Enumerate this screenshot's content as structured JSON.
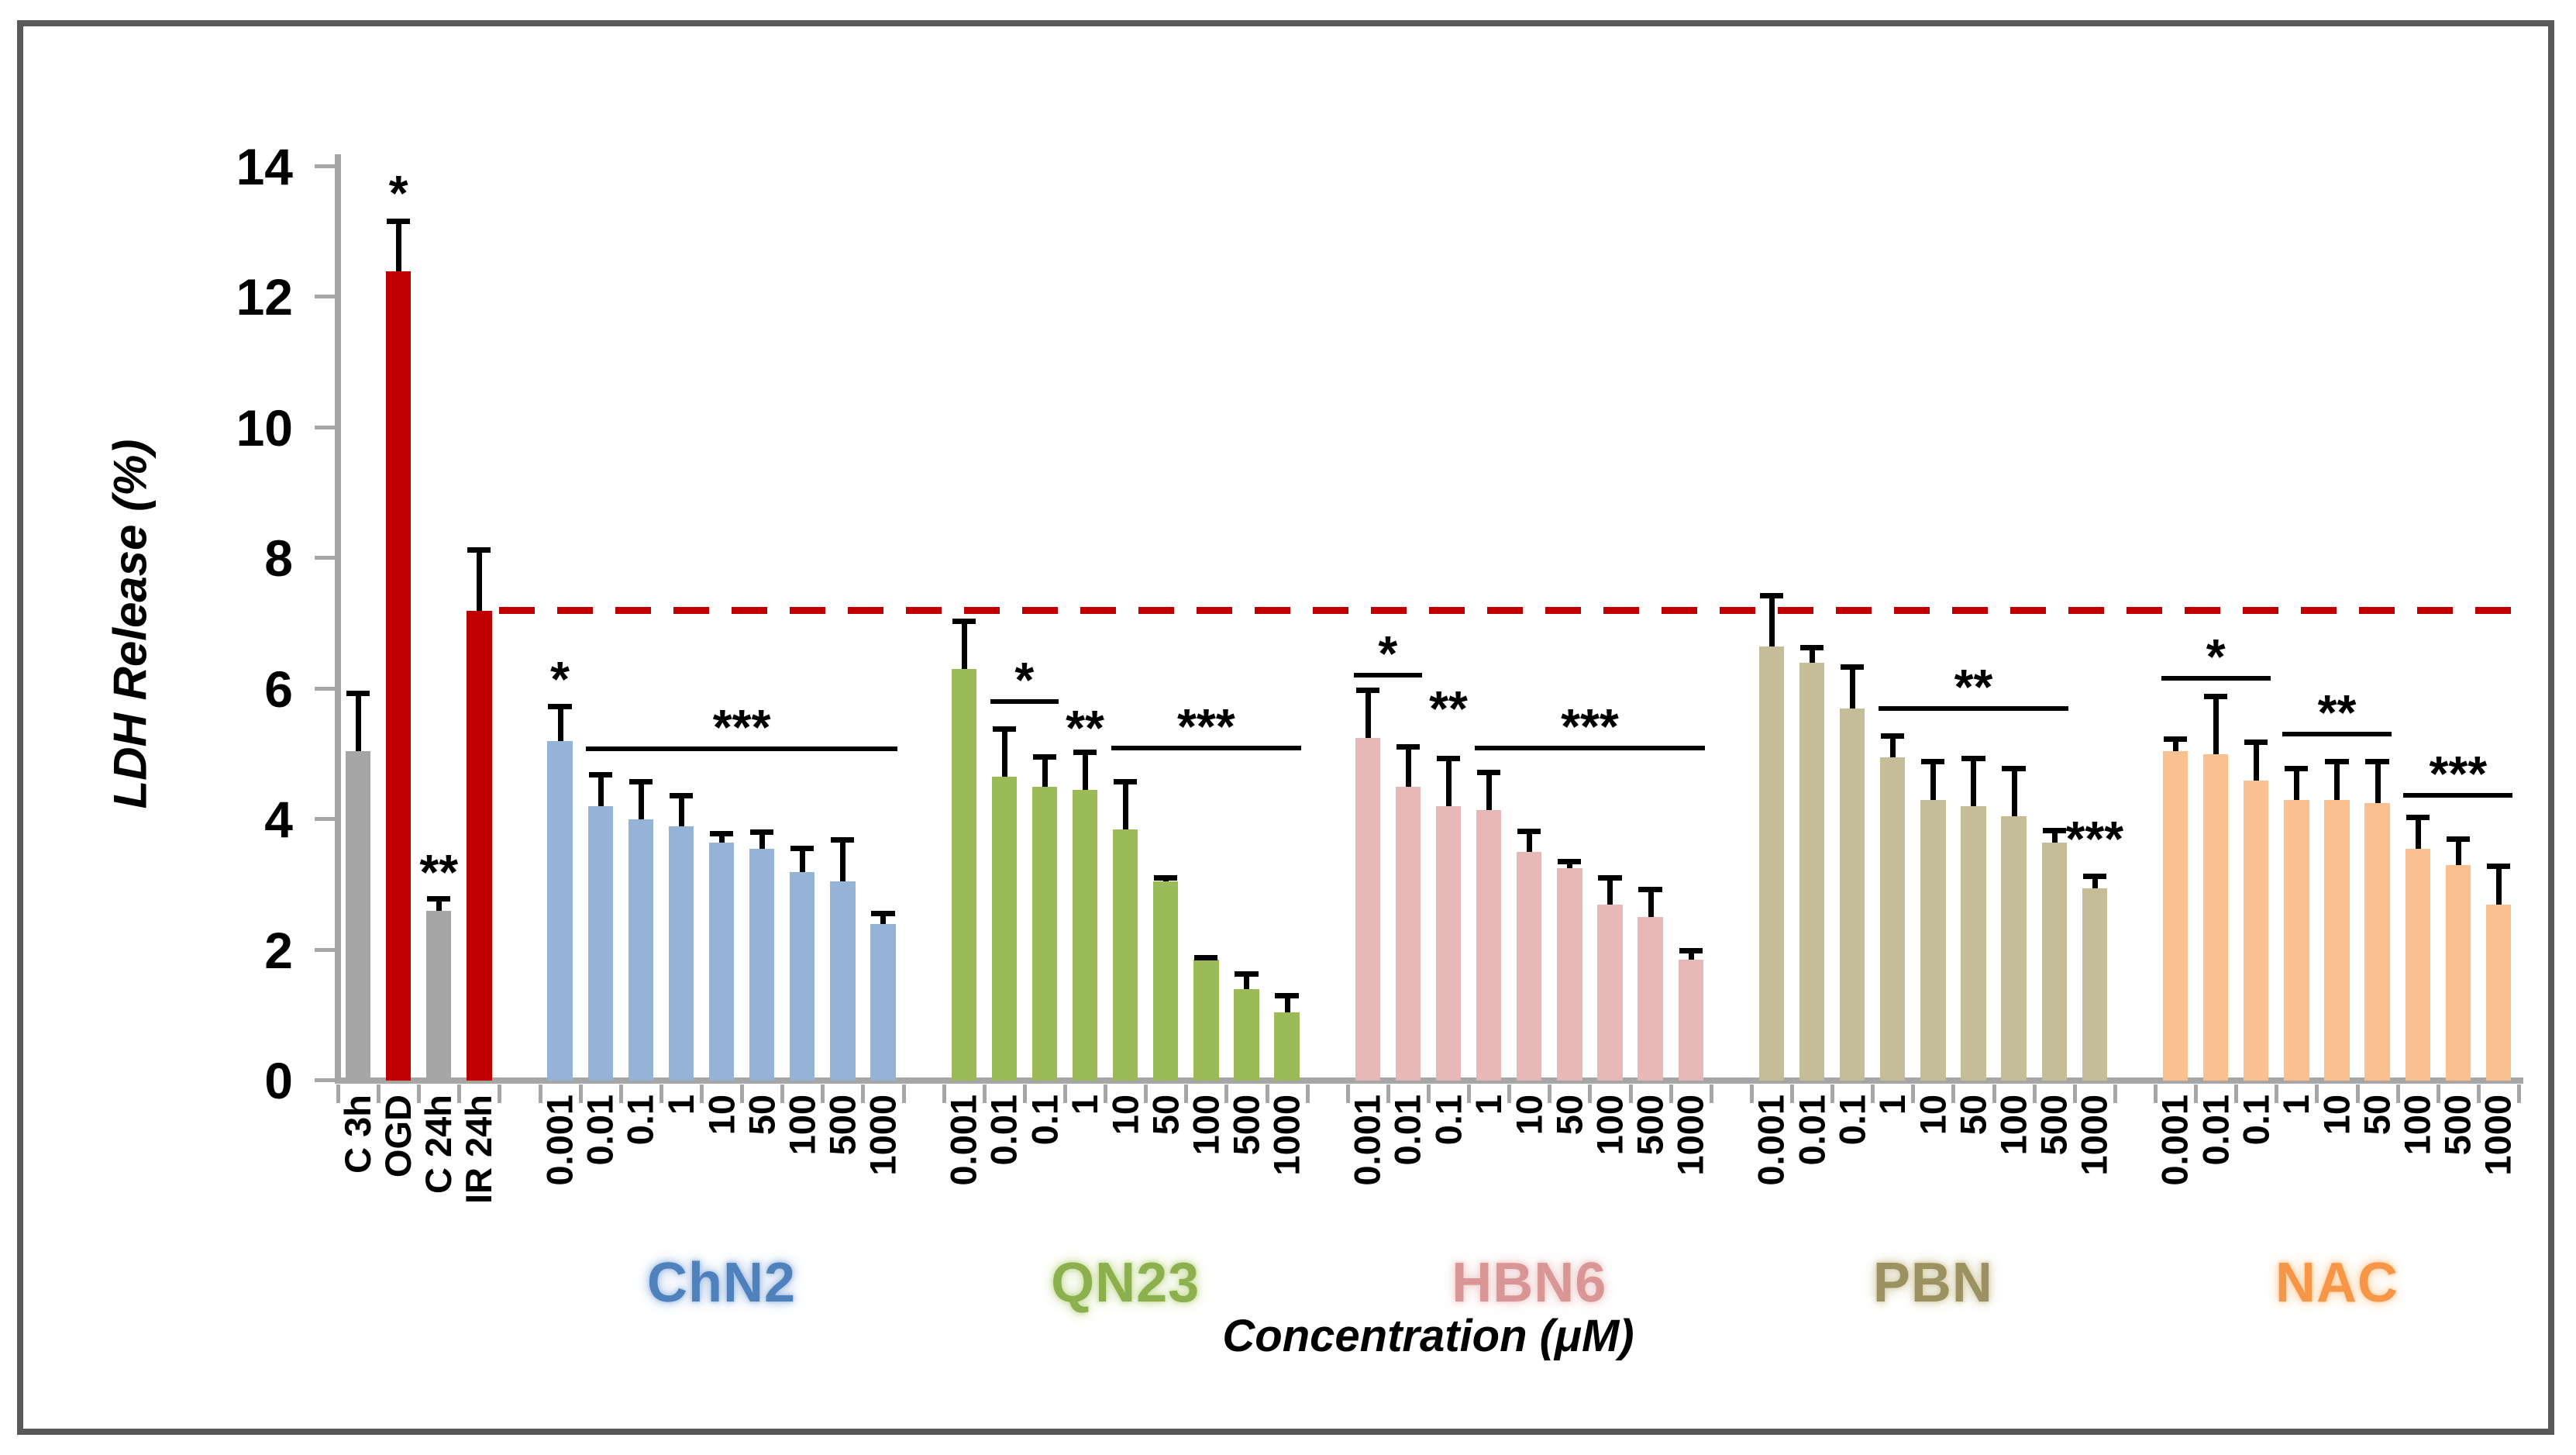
{
  "chart_data": {
    "type": "bar",
    "title": "",
    "ylabel": "LDH Release (%)",
    "xlabel": "Concentration (μM)",
    "ylim": [
      0,
      14
    ],
    "yticks": [
      0,
      2,
      4,
      6,
      8,
      10,
      12,
      14
    ],
    "grid": false,
    "legend": "none",
    "reference_line": {
      "value": 7.2,
      "color": "#C00000",
      "style": "dashed"
    },
    "concentrations": [
      "0.001",
      "0.01",
      "0.1",
      "1",
      "10",
      "50",
      "100",
      "500",
      "1000"
    ],
    "controls": {
      "categories": [
        "C 3h",
        "OGD",
        "C 24h",
        "IR 24h"
      ],
      "values": [
        5.05,
        12.4,
        2.6,
        7.2
      ],
      "errors": [
        0.9,
        0.78,
        0.2,
        0.95
      ],
      "colors": [
        "#A6A6A6",
        "#C00000",
        "#A6A6A6",
        "#C00000"
      ],
      "annotations": [
        {
          "marker": "*",
          "at": "OGD",
          "y": 13.35,
          "line": false
        },
        {
          "marker": "**",
          "at": "C 24h",
          "y": 2.95,
          "line": false
        }
      ]
    },
    "series": [
      {
        "name": "ChN2",
        "color": "#95B3D7",
        "label_color": "#4F81BD",
        "glow": "#AEC6E6",
        "values": [
          5.2,
          4.2,
          4.0,
          3.9,
          3.65,
          3.55,
          3.2,
          3.05,
          2.4
        ],
        "errors": [
          0.55,
          0.5,
          0.6,
          0.48,
          0.15,
          0.27,
          0.38,
          0.65,
          0.18
        ],
        "annotations": [
          {
            "marker": "*",
            "at": "0.001",
            "y": 5.9,
            "line": false
          },
          {
            "marker": "***",
            "from": "0.01",
            "to": "1000",
            "y": 5.05,
            "line": true
          }
        ]
      },
      {
        "name": "QN23",
        "color": "#9BBB59",
        "label_color": "#8DB04E",
        "glow": "#CDE0A6",
        "values": [
          6.3,
          4.65,
          4.5,
          4.45,
          3.85,
          3.05,
          1.85,
          1.4,
          1.05
        ],
        "errors": [
          0.75,
          0.75,
          0.47,
          0.6,
          0.74,
          0.07,
          0.05,
          0.25,
          0.27
        ],
        "annotations": [
          {
            "marker": "*",
            "from": "0.01",
            "to": "0.1",
            "y": 5.77,
            "line": true
          },
          {
            "marker": "**",
            "at": "1",
            "y": 5.15,
            "line": false
          },
          {
            "marker": "***",
            "from": "10",
            "to": "1000",
            "y": 5.06,
            "line": true
          }
        ]
      },
      {
        "name": "HBN6",
        "color": "#E6B9B8",
        "label_color": "#D99694",
        "glow": "#F0D5D4",
        "values": [
          5.25,
          4.5,
          4.2,
          4.15,
          3.5,
          3.25,
          2.7,
          2.5,
          1.85
        ],
        "errors": [
          0.75,
          0.63,
          0.75,
          0.59,
          0.33,
          0.12,
          0.42,
          0.44,
          0.16
        ],
        "annotations": [
          {
            "marker": "*",
            "from": "0.001",
            "to": "0.01",
            "y": 6.17,
            "line": true
          },
          {
            "marker": "**",
            "at": "0.1",
            "y": 5.45,
            "line": false
          },
          {
            "marker": "***",
            "from": "1",
            "to": "1000",
            "y": 5.06,
            "line": true
          }
        ]
      },
      {
        "name": "PBN",
        "color": "#C4BD97",
        "label_color": "#9C9160",
        "glow": "#D8D3B4",
        "values": [
          6.65,
          6.4,
          5.7,
          4.95,
          4.3,
          4.2,
          4.05,
          3.65,
          2.95
        ],
        "errors": [
          0.8,
          0.25,
          0.65,
          0.35,
          0.6,
          0.75,
          0.75,
          0.2,
          0.2
        ],
        "annotations": [
          {
            "marker": "**",
            "from": "1",
            "to": "500",
            "y": 5.67,
            "line": true
          },
          {
            "marker": "***",
            "at": "1000",
            "y": 3.45,
            "line": false
          }
        ]
      },
      {
        "name": "NAC",
        "color": "#FAC090",
        "label_color": "#F79646",
        "glow": "#FCD7B2",
        "values": [
          5.05,
          5.0,
          4.6,
          4.3,
          4.3,
          4.25,
          3.55,
          3.3,
          2.7
        ],
        "errors": [
          0.2,
          0.9,
          0.6,
          0.5,
          0.6,
          0.65,
          0.5,
          0.42,
          0.6
        ],
        "annotations": [
          {
            "marker": "*",
            "from": "0.001",
            "to": "0.1",
            "y": 6.13,
            "line": true
          },
          {
            "marker": "**",
            "from": "1",
            "to": "50",
            "y": 5.27,
            "line": true
          },
          {
            "marker": "***",
            "from": "100",
            "to": "1000",
            "y": 4.33,
            "line": true
          }
        ]
      }
    ]
  }
}
